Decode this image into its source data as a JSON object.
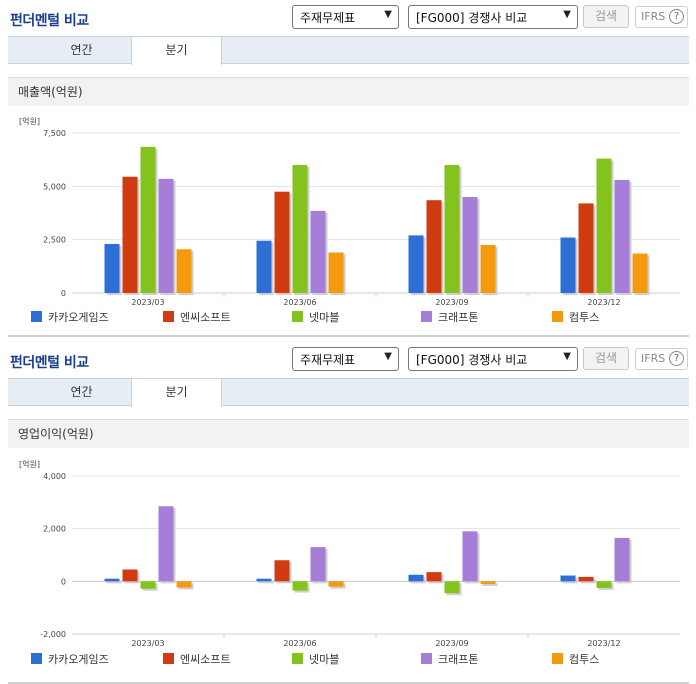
{
  "panels": [
    {
      "title": "펀더멘털 비교",
      "select_a": "주재무제표",
      "select_b": "[FG000] 경쟁사 비교",
      "search_label": "검색",
      "ifrs_label": "IFRS",
      "ifrs_help": "?",
      "tabs": [
        "연간",
        "분기"
      ],
      "active_tab": "분기",
      "metric_title": "매출액(억원)"
    },
    {
      "title": "펀더멘털 비교",
      "select_a": "주재무제표",
      "select_b": "[FG000] 경쟁사 비교",
      "search_label": "검색",
      "ifrs_label": "IFRS",
      "ifrs_help": "?",
      "tabs": [
        "연간",
        "분기"
      ],
      "active_tab": "분기",
      "metric_title": "영업이익(억원)"
    }
  ],
  "chart_data": [
    {
      "type": "bar",
      "unit_label": "[억원]",
      "categories": [
        "2023/03",
        "2023/06",
        "2023/09",
        "2023/12"
      ],
      "ylim": [
        0,
        7500
      ],
      "yticks": [
        0,
        2500,
        5000,
        7500
      ],
      "ytick_labels": [
        "0",
        "2,500",
        "5,000",
        "7,500"
      ],
      "legend_position": "bottom",
      "series": [
        {
          "name": "카카오게임즈",
          "color": "#2c6fd6",
          "values": [
            2300,
            2450,
            2700,
            2600
          ]
        },
        {
          "name": "엔씨소프트",
          "color": "#d13b12",
          "values": [
            5450,
            4750,
            4350,
            4200
          ]
        },
        {
          "name": "넷마블",
          "color": "#84c21d",
          "values": [
            6850,
            6000,
            6000,
            6300
          ]
        },
        {
          "name": "크래프톤",
          "color": "#a57ed8",
          "values": [
            5350,
            3850,
            4500,
            5300
          ]
        },
        {
          "name": "컴투스",
          "color": "#f49a0e",
          "values": [
            2050,
            1900,
            2250,
            1850
          ]
        }
      ]
    },
    {
      "type": "bar",
      "unit_label": "[억원]",
      "categories": [
        "2023/03",
        "2023/06",
        "2023/09",
        "2023/12"
      ],
      "ylim": [
        -2000,
        4000
      ],
      "yticks": [
        -2000,
        0,
        2000,
        4000
      ],
      "ytick_labels": [
        "-2,000",
        "0",
        "2,000",
        "4,000"
      ],
      "legend_position": "bottom",
      "series": [
        {
          "name": "카카오게임즈",
          "color": "#2c6fd6",
          "values": [
            100,
            100,
            250,
            220
          ]
        },
        {
          "name": "엔씨소프트",
          "color": "#d13b12",
          "values": [
            450,
            800,
            350,
            170
          ]
        },
        {
          "name": "넷마블",
          "color": "#84c21d",
          "values": [
            -280,
            -350,
            -450,
            -250
          ]
        },
        {
          "name": "크래프톤",
          "color": "#a57ed8",
          "values": [
            2850,
            1300,
            1900,
            1650
          ]
        },
        {
          "name": "컴투스",
          "color": "#f49a0e",
          "values": [
            -230,
            -200,
            -100,
            0
          ]
        }
      ]
    }
  ]
}
